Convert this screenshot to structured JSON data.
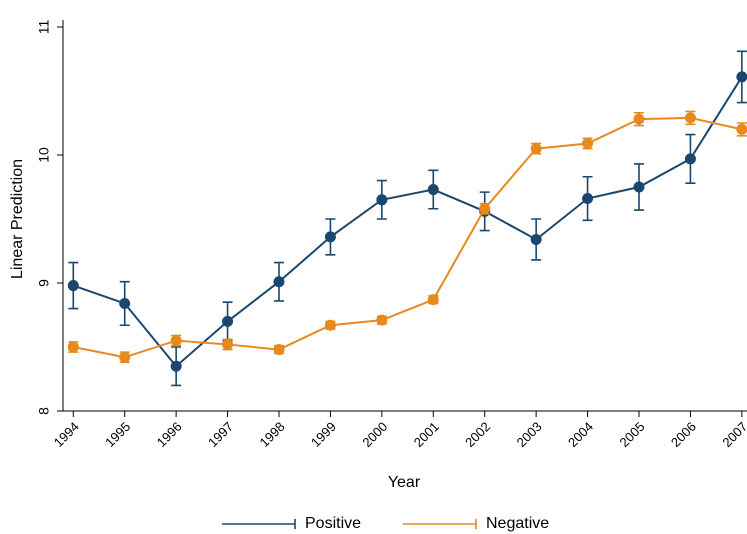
{
  "chart_data": {
    "type": "line",
    "x_label": "Year",
    "y_label": "Linear Prediction",
    "x": [
      1994,
      1995,
      1996,
      1997,
      1998,
      1999,
      2000,
      2001,
      2002,
      2003,
      2004,
      2005,
      2006,
      2007
    ],
    "series": [
      {
        "name": "Positive",
        "color": "#1a476f",
        "values": [
          8.98,
          8.84,
          8.35,
          8.7,
          9.01,
          9.36,
          9.65,
          9.73,
          9.56,
          9.34,
          9.66,
          9.75,
          9.97,
          10.61
        ],
        "errors": [
          0.18,
          0.17,
          0.15,
          0.15,
          0.15,
          0.14,
          0.15,
          0.15,
          0.15,
          0.16,
          0.17,
          0.18,
          0.19,
          0.2
        ]
      },
      {
        "name": "Negative",
        "color": "#e8891e",
        "values": [
          8.5,
          8.42,
          8.55,
          8.52,
          8.48,
          8.67,
          8.71,
          8.87,
          9.58,
          10.05,
          10.09,
          10.28,
          10.29,
          10.2
        ],
        "errors": [
          0.04,
          0.04,
          0.04,
          0.04,
          0.03,
          0.03,
          0.03,
          0.03,
          0.04,
          0.04,
          0.04,
          0.05,
          0.05,
          0.05
        ]
      }
    ],
    "xlim": [
      1993.8,
      2007.1
    ],
    "ylim": [
      8,
      11
    ],
    "xticks": [
      1994,
      1995,
      1996,
      1997,
      1998,
      1999,
      2000,
      2001,
      2002,
      2003,
      2004,
      2005,
      2006,
      2007
    ],
    "yticks": [
      8,
      9,
      10,
      11
    ],
    "grid": false,
    "legend": "bottom"
  }
}
